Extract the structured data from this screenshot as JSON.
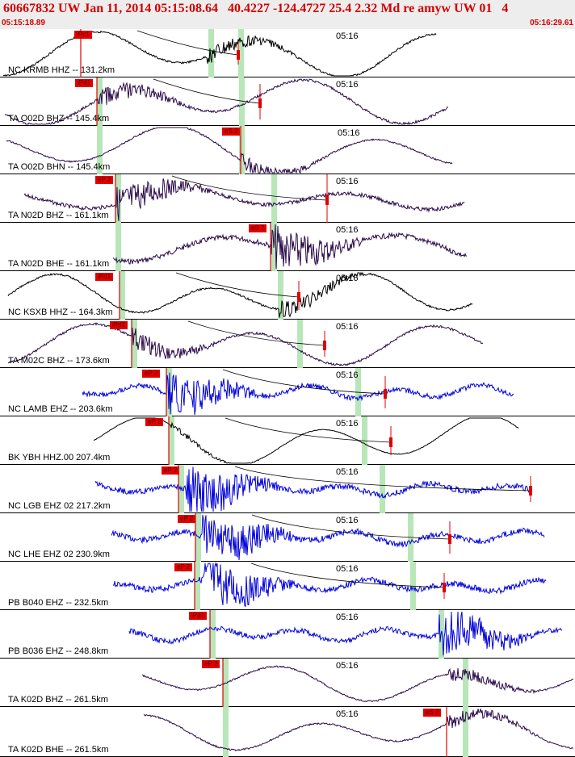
{
  "header": {
    "title": "60667832 UW Jan 11, 2014 05:15:08.64   40.4227 -124.4727 25.4 2.32 Md re amyw UW 01   4",
    "start_time": "05:15:18.89",
    "end_time": "05:16:29.61"
  },
  "colors": {
    "header_bg": "#ededed",
    "header_text": "#d40000",
    "pick": "#e00000",
    "window_band": "#b8e6b8",
    "trace_purple": "#2a0a4a",
    "trace_black": "#000000",
    "trace_blue": "#0000dd"
  },
  "traces": [
    {
      "station": "NC KRMB HHZ -- 131.2km",
      "pick": "iPc1",
      "time_label": "05:16",
      "color": "trace_black"
    },
    {
      "station": "TA O02D BHZ -- 145.4km",
      "pick": "iPd1",
      "time_label": "05:16",
      "color": "trace_purple"
    },
    {
      "station": "TA O02D BHN -- 145.4km",
      "pick": "eS 2",
      "time_label": "05:16",
      "color": "trace_purple"
    },
    {
      "station": "TA N02D BHZ -- 161.1km",
      "pick": "eP 2",
      "time_label": "05:16",
      "color": "trace_purple"
    },
    {
      "station": "TA N02D BHE -- 161.1km",
      "pick": "eS 2",
      "time_label": "05:16",
      "color": "trace_purple"
    },
    {
      "station": "NC KSXB HHZ -- 164.3km",
      "pick": "iPd1",
      "time_label": "05:16",
      "color": "trace_black"
    },
    {
      "station": "TA M02C BHZ -- 173.6km",
      "pick": "iPd1",
      "time_label": "05:16",
      "color": "trace_purple"
    },
    {
      "station": "NC LAMB EHZ -- 203.6km",
      "pick": "eP 2",
      "time_label": "05:16",
      "color": "trace_blue"
    },
    {
      "station": "BK YBH HHZ.00 207.4km",
      "pick": "eP 2",
      "time_label": "05:16",
      "color": "trace_black"
    },
    {
      "station": "NC LGB EHZ 02 217.2km",
      "pick": "eP 2",
      "time_label": "05:16",
      "color": "trace_blue"
    },
    {
      "station": "NC LHE EHZ 02 230.9km",
      "pick": "eP 2",
      "time_label": "05:16",
      "color": "trace_blue"
    },
    {
      "station": "PB B040 EHZ -- 232.5km",
      "pick": "eP 2",
      "time_label": "05:16",
      "color": "trace_blue"
    },
    {
      "station": "PB B036 EHZ -- 248.8km",
      "pick": "iPd1",
      "time_label": "05:16",
      "color": "trace_blue"
    },
    {
      "station": "TA K02D BHZ -- 261.5km",
      "pick": "eP 2",
      "time_label": "05:16",
      "color": "trace_purple"
    },
    {
      "station": "TA K02D BHE -- 261.5km",
      "pick": "eS 2",
      "time_label": "05:16",
      "color": "trace_purple"
    }
  ]
}
